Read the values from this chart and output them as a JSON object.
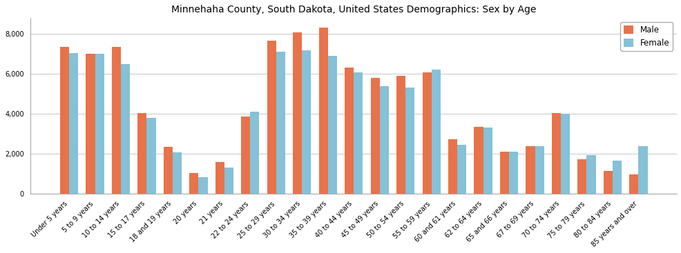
{
  "title": "Minnehaha County, South Dakota, United States Demographics: Sex by Age",
  "categories": [
    "Under 5 years",
    "5 to 9 years",
    "10 to 14 years",
    "15 to 17 years",
    "18 and 19 years",
    "20 years",
    "21 years",
    "22 to 24 years",
    "25 to 29 years",
    "30 to 34 years",
    "35 to 39 years",
    "40 to 44 years",
    "45 to 49 years",
    "50 to 54 years",
    "55 to 59 years",
    "60 and 61 years",
    "62 to 64 years",
    "65 and 66 years",
    "67 to 69 years",
    "70 to 74 years",
    "75 to 79 years",
    "80 to 84 years",
    "85 years and over"
  ],
  "male": [
    7350,
    7000,
    7350,
    4020,
    2330,
    1020,
    1570,
    3870,
    7680,
    8080,
    8340,
    6310,
    5790,
    5920,
    6090,
    2730,
    3330,
    2080,
    2390,
    4020,
    1720,
    1130,
    950
  ],
  "female": [
    7050,
    7020,
    6500,
    3800,
    2060,
    820,
    1290,
    4090,
    7110,
    7200,
    6890,
    6080,
    5390,
    5310,
    6220,
    2450,
    3320,
    2090,
    2390,
    4010,
    1940,
    1640,
    2380
  ],
  "male_color": "#E8724A",
  "female_color": "#85C1D7",
  "bar_width": 0.35,
  "ylim": [
    0,
    8800
  ],
  "yticks": [
    0,
    2000,
    4000,
    6000,
    8000
  ],
  "legend_labels": [
    "Male",
    "Female"
  ],
  "title_fontsize": 10,
  "tick_fontsize": 7,
  "figsize": [
    9.87,
    3.67
  ],
  "dpi": 100,
  "facecolor": "#FFFFFF",
  "grid_color": "#CCCCCC",
  "spine_color": "#AAAAAA"
}
